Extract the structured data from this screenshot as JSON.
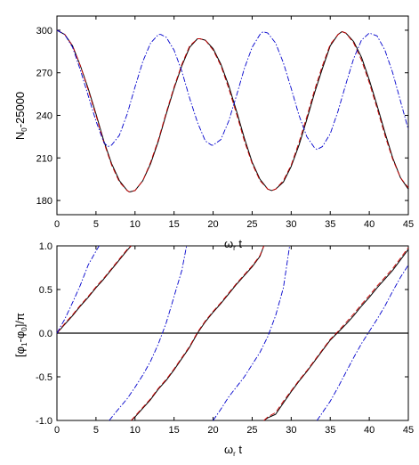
{
  "chart_data": [
    {
      "type": "line",
      "xlabel": "ω_r t",
      "ylabel": "N_0-25000",
      "xlim": [
        0,
        45
      ],
      "ylim": [
        170,
        310
      ],
      "xticks": [
        0,
        5,
        10,
        15,
        20,
        25,
        30,
        35,
        40,
        45
      ],
      "yticks": [
        180,
        210,
        240,
        270,
        300
      ],
      "grid": false,
      "series": [
        {
          "style": "solid",
          "color": "#000000",
          "x": [
            0,
            1,
            2,
            3,
            4,
            5,
            6,
            7,
            8,
            9,
            9.3,
            10,
            11,
            12,
            13,
            14,
            15,
            16,
            17,
            18,
            18.3,
            19,
            20,
            21,
            22,
            23,
            24,
            25,
            26,
            27,
            27.5,
            28,
            29,
            30,
            31,
            32,
            33,
            34,
            35,
            36,
            36.5,
            37,
            38,
            39,
            40,
            41,
            42,
            43,
            44,
            45
          ],
          "values": [
            300,
            297,
            289,
            275,
            259,
            241,
            222,
            206,
            194,
            187,
            186,
            187,
            194,
            206,
            222,
            241,
            259,
            275,
            288,
            294,
            294,
            293,
            287,
            276,
            261,
            243,
            224,
            207,
            195,
            188,
            187,
            188,
            193,
            204,
            219,
            237,
            256,
            273,
            289,
            297,
            299,
            298,
            292,
            281,
            265,
            247,
            228,
            210,
            196,
            188
          ]
        },
        {
          "style": "dashed",
          "color": "#cc0000",
          "x": [
            0,
            1,
            2,
            3,
            4,
            5,
            6,
            7,
            8,
            9,
            9.3,
            10,
            11,
            12,
            13,
            14,
            15,
            16,
            17,
            18,
            18.3,
            19,
            20,
            21,
            22,
            23,
            24,
            25,
            26,
            27,
            27.5,
            28,
            29,
            30,
            31,
            32,
            33,
            34,
            35,
            36,
            36.5,
            37,
            38,
            39,
            40,
            41,
            42,
            43,
            44,
            45
          ],
          "values": [
            300,
            297,
            289,
            275,
            258,
            240,
            221,
            205,
            193,
            187,
            186,
            187,
            194,
            207,
            223,
            242,
            260,
            276,
            289,
            294,
            294,
            293,
            286,
            275,
            259,
            241,
            222,
            206,
            194,
            188,
            187,
            188,
            194,
            205,
            221,
            239,
            258,
            275,
            290,
            297,
            299,
            298,
            291,
            279,
            263,
            245,
            226,
            209,
            196,
            189
          ]
        },
        {
          "style": "dashdot",
          "color": "#0000cc",
          "x": [
            0,
            1,
            2,
            3,
            4,
            5,
            6,
            6.5,
            7,
            8,
            9,
            10,
            11,
            12,
            13,
            13.3,
            14,
            15,
            16,
            17,
            18,
            19,
            19.8,
            20,
            21,
            22,
            23,
            24,
            25,
            26,
            26.4,
            27,
            28,
            29,
            30,
            31,
            32,
            33,
            33.3,
            34,
            35,
            36,
            37,
            38,
            39,
            40,
            41,
            42,
            43,
            44,
            45
          ],
          "values": [
            300,
            297,
            288,
            272,
            254,
            236,
            221,
            218,
            219,
            226,
            241,
            260,
            278,
            291,
            297,
            297,
            295,
            286,
            271,
            252,
            235,
            222,
            219,
            219,
            223,
            236,
            254,
            273,
            288,
            297,
            299,
            298,
            291,
            277,
            259,
            240,
            225,
            217,
            216,
            218,
            227,
            243,
            262,
            280,
            293,
            298,
            296,
            286,
            270,
            250,
            230
          ]
        }
      ]
    },
    {
      "type": "line",
      "xlabel": "ω_r t",
      "ylabel": "[φ_1-φ_0]/π",
      "xlim": [
        0,
        45
      ],
      "ylim": [
        -1.0,
        1.0
      ],
      "xticks": [
        0,
        5,
        10,
        15,
        20,
        25,
        30,
        35,
        40,
        45
      ],
      "yticks": [
        -1.0,
        -0.5,
        0.0,
        0.5,
        1.0
      ],
      "yticklabels": [
        "-1.0",
        "-0.5",
        "0.0",
        "0.5",
        "1.0"
      ],
      "hline": 0.0,
      "grid": false,
      "series": [
        {
          "style": "solid",
          "color": "#000000",
          "x": [
            0,
            1,
            2,
            3,
            4,
            5,
            6,
            7,
            8,
            9,
            9.5,
            null,
            9.5,
            10,
            11,
            12,
            13,
            14,
            15,
            16,
            17,
            18,
            19,
            20,
            21,
            22,
            23,
            24,
            25,
            26,
            26.5,
            null,
            26.5,
            27,
            28,
            29,
            30,
            31,
            32,
            33,
            34,
            35,
            36,
            37,
            38,
            39,
            40,
            41,
            42,
            43,
            44,
            45
          ],
          "values": [
            0.0,
            0.1,
            0.2,
            0.31,
            0.41,
            0.52,
            0.62,
            0.73,
            0.84,
            0.95,
            1.0,
            null,
            -1.0,
            -0.96,
            -0.86,
            -0.76,
            -0.64,
            -0.54,
            -0.42,
            -0.29,
            -0.16,
            0.0,
            0.13,
            0.24,
            0.34,
            0.45,
            0.56,
            0.66,
            0.76,
            0.88,
            1.0,
            null,
            -1.0,
            -0.97,
            -0.93,
            -0.8,
            -0.67,
            -0.55,
            -0.44,
            -0.32,
            -0.2,
            -0.08,
            0.01,
            0.1,
            0.2,
            0.31,
            0.41,
            0.52,
            0.62,
            0.72,
            0.84,
            0.96
          ]
        },
        {
          "style": "dashed",
          "color": "#cc0000",
          "x": [
            0,
            1,
            2,
            3,
            4,
            5,
            6,
            7,
            8,
            9,
            9.5,
            null,
            9.5,
            10,
            11,
            12,
            13,
            14,
            15,
            16,
            17,
            18,
            19,
            20,
            21,
            22,
            23,
            24,
            25,
            26,
            26.5,
            null,
            26.5,
            27,
            28,
            29,
            30,
            31,
            32,
            33,
            34,
            35,
            36,
            37,
            38,
            39,
            40,
            41,
            42,
            43,
            44,
            45
          ],
          "values": [
            0.0,
            0.11,
            0.21,
            0.32,
            0.42,
            0.53,
            0.63,
            0.74,
            0.85,
            0.96,
            1.0,
            null,
            -1.0,
            -0.95,
            -0.85,
            -0.75,
            -0.63,
            -0.53,
            -0.41,
            -0.28,
            -0.15,
            0.01,
            0.14,
            0.25,
            0.35,
            0.46,
            0.57,
            0.67,
            0.77,
            0.89,
            1.0,
            null,
            -1.0,
            -0.96,
            -0.91,
            -0.78,
            -0.66,
            -0.54,
            -0.43,
            -0.31,
            -0.19,
            -0.07,
            0.02,
            0.12,
            0.22,
            0.33,
            0.43,
            0.54,
            0.64,
            0.74,
            0.86,
            0.98
          ]
        },
        {
          "style": "dashdot",
          "color": "#0000cc",
          "x": [
            0,
            1,
            2,
            3,
            4,
            5,
            5.4,
            null,
            6.7,
            7.5,
            9,
            10,
            11,
            12,
            13,
            14,
            15,
            16,
            16.6,
            null,
            20,
            21,
            22,
            24,
            26,
            27,
            28,
            29,
            29.8,
            null,
            33.3,
            34,
            35,
            36,
            37,
            38,
            39,
            40,
            41,
            42,
            43,
            44,
            45
          ],
          "values": [
            0.0,
            0.16,
            0.35,
            0.55,
            0.78,
            0.94,
            1.0,
            null,
            -1.0,
            -0.91,
            -0.75,
            -0.62,
            -0.48,
            -0.32,
            -0.12,
            0.12,
            0.42,
            0.72,
            1.0,
            null,
            -1.0,
            -0.87,
            -0.73,
            -0.5,
            -0.22,
            -0.04,
            0.2,
            0.52,
            1.0,
            null,
            -1.0,
            -0.91,
            -0.78,
            -0.62,
            -0.45,
            -0.28,
            -0.12,
            0.02,
            0.16,
            0.31,
            0.48,
            0.64,
            0.78
          ]
        }
      ]
    }
  ]
}
